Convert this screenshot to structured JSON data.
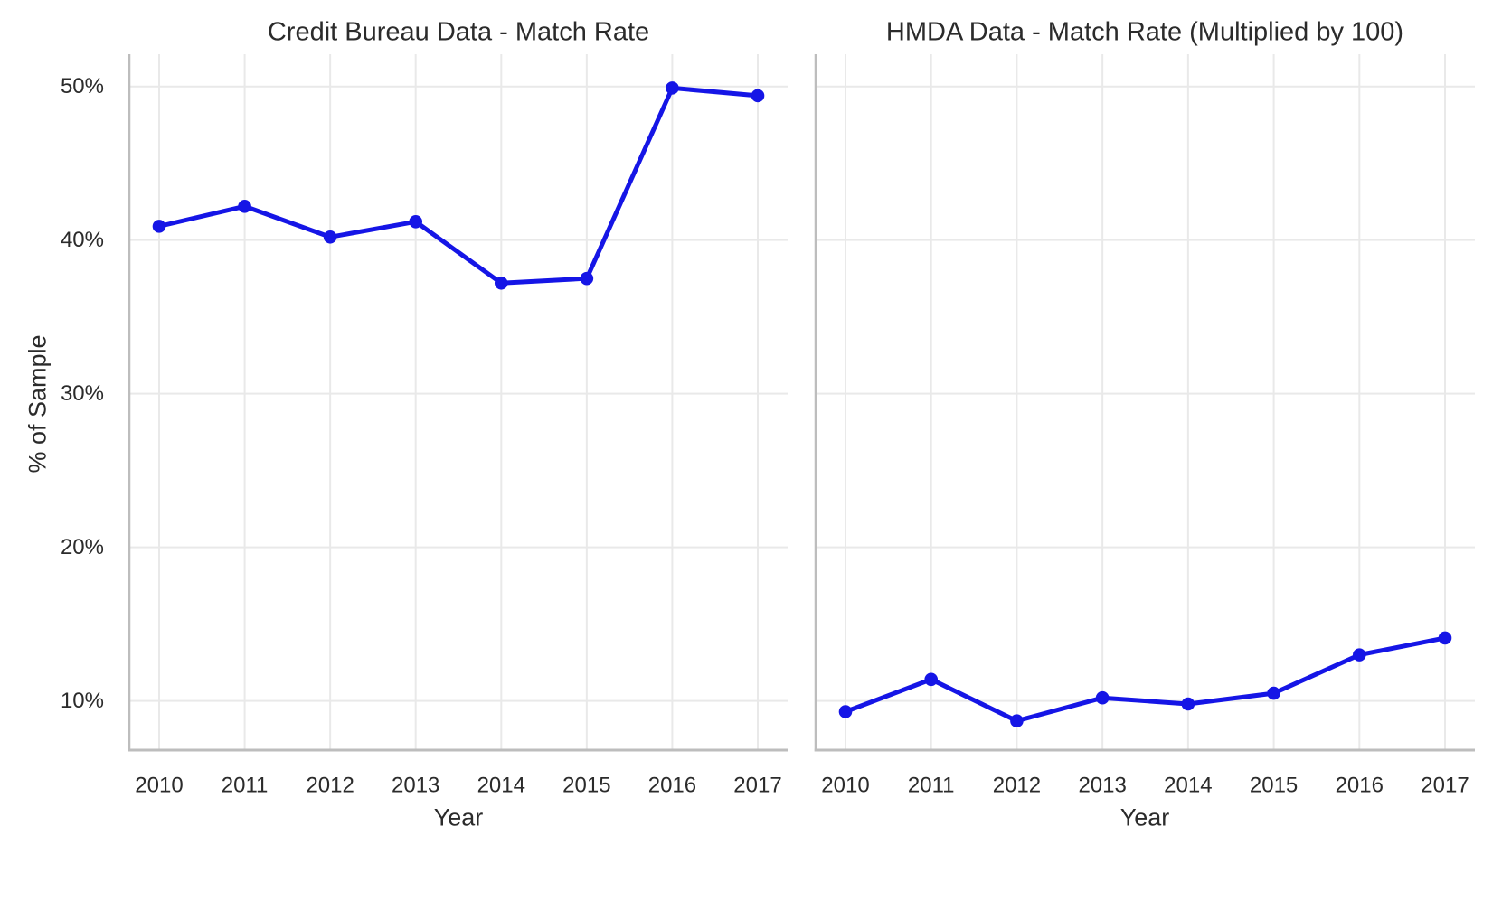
{
  "style": {
    "accent_blue": "#1515e6",
    "grid_color": "#e9e9e9",
    "axis_line_color": "#bdbdbd",
    "text_color": "#2b2b2b",
    "background": "#ffffff"
  },
  "chart_data": [
    {
      "type": "line",
      "title": "Credit Bureau Data - Match Rate",
      "xlabel": "Year",
      "ylabel": "% of Sample",
      "categories": [
        "2010",
        "2011",
        "2012",
        "2013",
        "2014",
        "2015",
        "2016",
        "2017"
      ],
      "series": [
        {
          "name": "Credit Bureau match rate (% of sample)",
          "values": [
            40.9,
            42.2,
            40.2,
            41.2,
            37.2,
            37.5,
            49.9,
            49.4
          ]
        }
      ],
      "ylim": [
        6.8,
        52.1
      ],
      "yticks": [
        10,
        20,
        30,
        40,
        50
      ],
      "ytick_labels": [
        "10%",
        "20%",
        "30%",
        "40%",
        "50%"
      ],
      "show_ytick_labels": true,
      "grid": "major x and y",
      "legend": "none",
      "marker": "circle"
    },
    {
      "type": "line",
      "title": "HMDA Data - Match Rate (Multiplied by 100)",
      "xlabel": "Year",
      "ylabel": "% of Sample",
      "categories": [
        "2010",
        "2011",
        "2012",
        "2013",
        "2014",
        "2015",
        "2016",
        "2017"
      ],
      "series": [
        {
          "name": "HMDA match rate x100 (% of sample)",
          "values": [
            9.3,
            11.4,
            8.7,
            10.2,
            9.8,
            10.5,
            13.0,
            14.1
          ]
        }
      ],
      "ylim": [
        6.8,
        52.1
      ],
      "yticks": [
        10,
        20,
        30,
        40,
        50
      ],
      "ytick_labels": [
        "10%",
        "20%",
        "30%",
        "40%",
        "50%"
      ],
      "show_ytick_labels": false,
      "grid": "major x and y",
      "legend": "none",
      "marker": "circle"
    }
  ]
}
